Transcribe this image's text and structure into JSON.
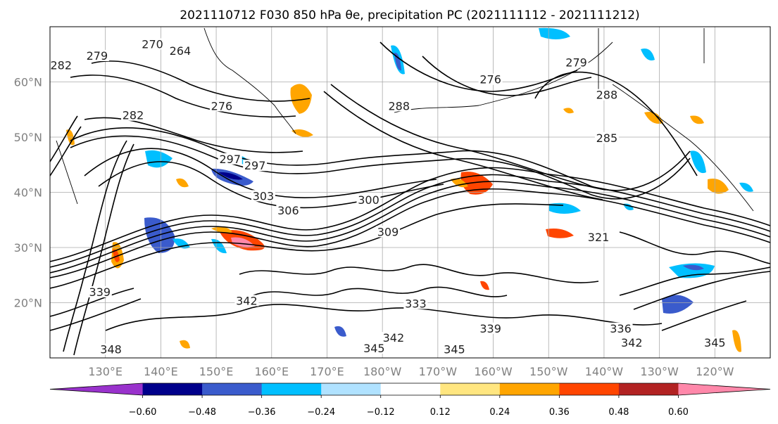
{
  "chart_data": {
    "type": "contour-map",
    "title": "2021110712 F030 850 hPa θe, precipitation PC (2021111112 - 2021111212)",
    "grid": true,
    "lat_ticks": [
      "20°N",
      "30°N",
      "40°N",
      "50°N",
      "60°N"
    ],
    "lat_values": [
      20,
      30,
      40,
      50,
      60
    ],
    "lon_ticks": [
      "130°E",
      "140°E",
      "150°E",
      "160°E",
      "170°E",
      "180°W",
      "170°W",
      "160°W",
      "150°W",
      "140°W",
      "130°W",
      "120°W"
    ],
    "lon_values": [
      130,
      140,
      150,
      160,
      170,
      180,
      190,
      200,
      210,
      220,
      230,
      240
    ],
    "extent": {
      "lon_min": 120,
      "lon_max": 250,
      "lat_min": 10,
      "lat_max": 70
    },
    "colorbar": {
      "orientation": "horizontal",
      "extend": "both",
      "tick_labels": [
        "−0.60",
        "−0.48",
        "−0.36",
        "−0.24",
        "−0.12",
        "0.12",
        "0.24",
        "0.36",
        "0.48",
        "0.60"
      ],
      "ticks": [
        -0.6,
        -0.48,
        -0.36,
        -0.24,
        -0.12,
        0.12,
        0.24,
        0.36,
        0.48,
        0.6
      ],
      "colors": [
        "#9932cc",
        "#00008b",
        "#3a5bcc",
        "#00bfff",
        "#b0e2ff",
        "#ffffff",
        "#ffe680",
        "#ffa500",
        "#ff4500",
        "#b22222",
        "#ff88aa"
      ]
    },
    "contour_labels": [
      {
        "text": "270",
        "lon": 138.5,
        "lat": 66.5
      },
      {
        "text": "264",
        "lon": 143.5,
        "lat": 65.3
      },
      {
        "text": "279",
        "lon": 128.5,
        "lat": 64.4
      },
      {
        "text": "282",
        "lon": 122,
        "lat": 62.7
      },
      {
        "text": "276",
        "lon": 151,
        "lat": 55.3
      },
      {
        "text": "282",
        "lon": 135,
        "lat": 53.6
      },
      {
        "text": "297",
        "lon": 152.5,
        "lat": 45.7
      },
      {
        "text": "297",
        "lon": 157,
        "lat": 44.5
      },
      {
        "text": "303",
        "lon": 158.5,
        "lat": 39
      },
      {
        "text": "306",
        "lon": 163,
        "lat": 36.4
      },
      {
        "text": "300",
        "lon": 177.5,
        "lat": 38.3
      },
      {
        "text": "309",
        "lon": 181,
        "lat": 32.5
      },
      {
        "text": "288",
        "lon": 183,
        "lat": 55.3
      },
      {
        "text": "276",
        "lon": 199.5,
        "lat": 60.1
      },
      {
        "text": "279",
        "lon": 215,
        "lat": 63.2
      },
      {
        "text": "288",
        "lon": 220.5,
        "lat": 57.3
      },
      {
        "text": "285",
        "lon": 220.5,
        "lat": 49.5
      },
      {
        "text": "321",
        "lon": 219,
        "lat": 31.5
      },
      {
        "text": "342",
        "lon": 155.5,
        "lat": 20
      },
      {
        "text": "339",
        "lon": 129,
        "lat": 21.6
      },
      {
        "text": "348",
        "lon": 131,
        "lat": 11.2
      },
      {
        "text": "333",
        "lon": 186,
        "lat": 19.5
      },
      {
        "text": "345",
        "lon": 178.5,
        "lat": 11.4
      },
      {
        "text": "342",
        "lon": 182,
        "lat": 13.3
      },
      {
        "text": "345",
        "lon": 193,
        "lat": 11.2
      },
      {
        "text": "339",
        "lon": 199.5,
        "lat": 15
      },
      {
        "text": "336",
        "lon": 223,
        "lat": 15
      },
      {
        "text": "342",
        "lon": 225,
        "lat": 12.4
      },
      {
        "text": "345",
        "lon": 240,
        "lat": 12.4
      }
    ]
  }
}
